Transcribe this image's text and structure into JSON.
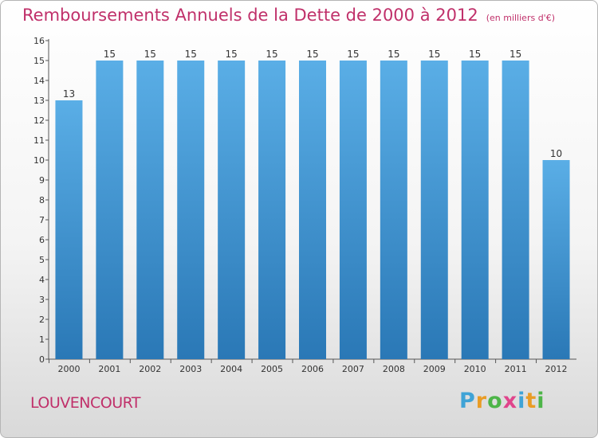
{
  "title": "Remboursements Annuels de la Dette de 2000 à 2012",
  "subtitle": "(en milliers d'€)",
  "commune": "LOUVENCOURT",
  "logo": {
    "p": "P",
    "r": "r",
    "o": "o",
    "x": "x",
    "i": "i",
    "t": "t",
    "i2": "i"
  },
  "colors": {
    "bar_top": "#5aaee6",
    "bar_bottom": "#2a78b6",
    "title": "#c0306a",
    "axis": "#555555"
  },
  "chart_data": {
    "type": "bar",
    "categories": [
      "2000",
      "2001",
      "2002",
      "2003",
      "2004",
      "2005",
      "2006",
      "2007",
      "2008",
      "2009",
      "2010",
      "2011",
      "2012"
    ],
    "values": [
      13,
      15,
      15,
      15,
      15,
      15,
      15,
      15,
      15,
      15,
      15,
      15,
      10
    ],
    "data_labels": [
      "13",
      "15",
      "15",
      "15",
      "15",
      "15",
      "15",
      "15",
      "15",
      "15",
      "15",
      "15",
      "10"
    ],
    "yticks": [
      "0",
      "1",
      "2",
      "3",
      "4",
      "5",
      "6",
      "7",
      "8",
      "9",
      "10",
      "11",
      "12",
      "13",
      "14",
      "15",
      "16"
    ],
    "ylim": [
      0,
      16
    ],
    "grid": false
  }
}
